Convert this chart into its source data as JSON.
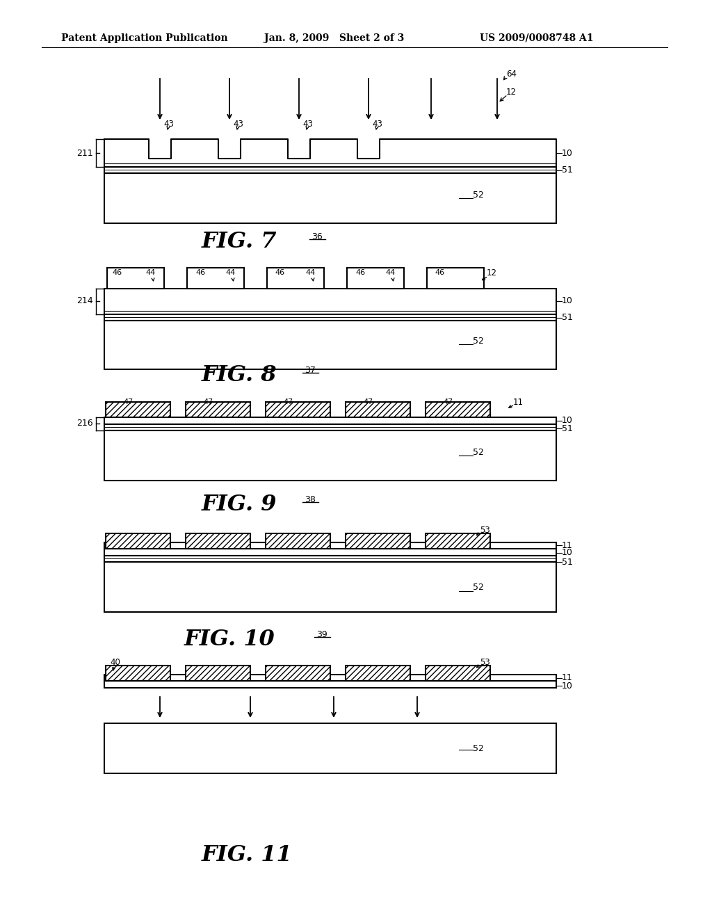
{
  "header_left": "Patent Application Publication",
  "header_mid": "Jan. 8, 2009   Sheet 2 of 3",
  "header_right": "US 2009/0008748 A1",
  "bg_color": "#ffffff",
  "line_color": "#000000",
  "fig7_label": "FIG. 7",
  "fig7_ref": "36",
  "fig8_label": "FIG. 8",
  "fig8_ref": "37",
  "fig9_label": "FIG. 9",
  "fig9_ref": "38",
  "fig10_label": "FIG. 10",
  "fig10_ref": "39",
  "fig11_label": "FIG. 11"
}
